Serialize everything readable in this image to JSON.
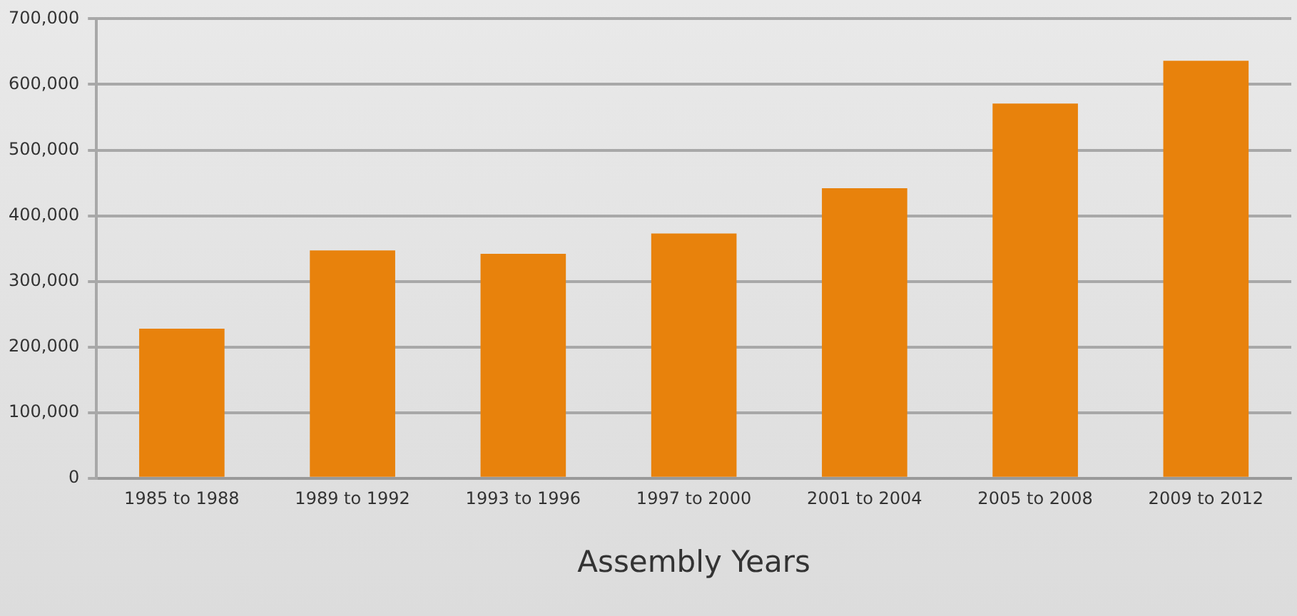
{
  "chart_data": {
    "type": "bar",
    "xlabel": "Assembly Years",
    "categories": [
      "1985 to 1988",
      "1989 to 1992",
      "1993 to 1996",
      "1997 to 2000",
      "2001 to 2004",
      "2005 to 2008",
      "2009 to 2012"
    ],
    "values": [
      228000,
      347000,
      342000,
      373000,
      442000,
      571000,
      636000
    ],
    "color": "#e8820c",
    "ylim": [
      0,
      700000
    ],
    "yticks": [
      {
        "value": 0,
        "label": "0"
      },
      {
        "value": 100000,
        "label": "100,000"
      },
      {
        "value": 200000,
        "label": "200,000"
      },
      {
        "value": 300000,
        "label": "300,000"
      },
      {
        "value": 400000,
        "label": "400,000"
      },
      {
        "value": 500000,
        "label": "500,000"
      },
      {
        "value": 600000,
        "label": "600,000"
      },
      {
        "value": 700000,
        "label": "700,000"
      }
    ],
    "grid": "y",
    "legend": false
  }
}
